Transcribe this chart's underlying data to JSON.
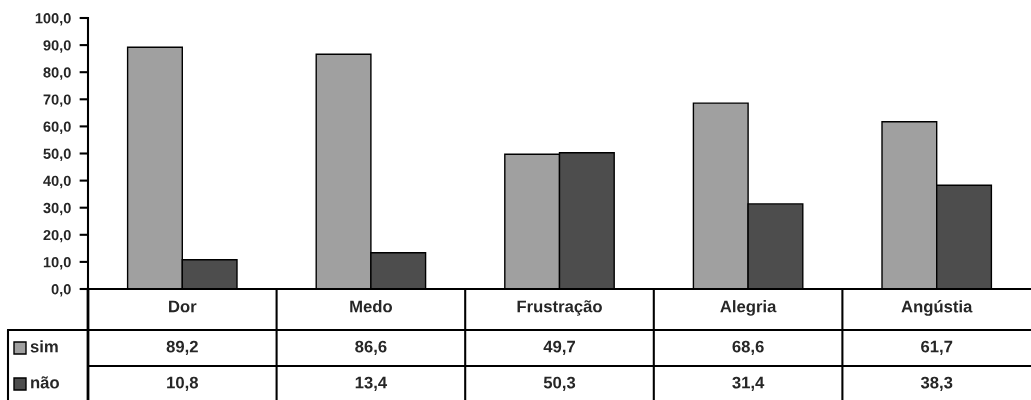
{
  "chart_data": {
    "type": "bar",
    "categories": [
      "Dor",
      "Medo",
      "Frustração",
      "Alegria",
      "Angústia"
    ],
    "series": [
      {
        "name": "sim",
        "color": "#a0a0a0",
        "values": [
          89.2,
          86.6,
          49.7,
          68.6,
          61.7
        ],
        "value_labels": [
          "89,2",
          "86,6",
          "49,7",
          "68,6",
          "61,7"
        ]
      },
      {
        "name": "não",
        "color": "#4d4d4d",
        "values": [
          10.8,
          13.4,
          50.3,
          31.4,
          38.3
        ],
        "value_labels": [
          "10,8",
          "13,4",
          "50,3",
          "31,4",
          "38,3"
        ]
      }
    ],
    "ylim": [
      0,
      100
    ],
    "yticks": [
      {
        "value": 0,
        "label": "0,0"
      },
      {
        "value": 10,
        "label": "10,0"
      },
      {
        "value": 20,
        "label": "20,0"
      },
      {
        "value": 30,
        "label": "30,0"
      },
      {
        "value": 40,
        "label": "40,0"
      },
      {
        "value": 50,
        "label": "50,0"
      },
      {
        "value": 60,
        "label": "60,0"
      },
      {
        "value": 70,
        "label": "70,0"
      },
      {
        "value": 80,
        "label": "80,0"
      },
      {
        "value": 90,
        "label": "90,0"
      },
      {
        "value": 100,
        "label": "100,0"
      }
    ],
    "legend": "bottom left"
  }
}
